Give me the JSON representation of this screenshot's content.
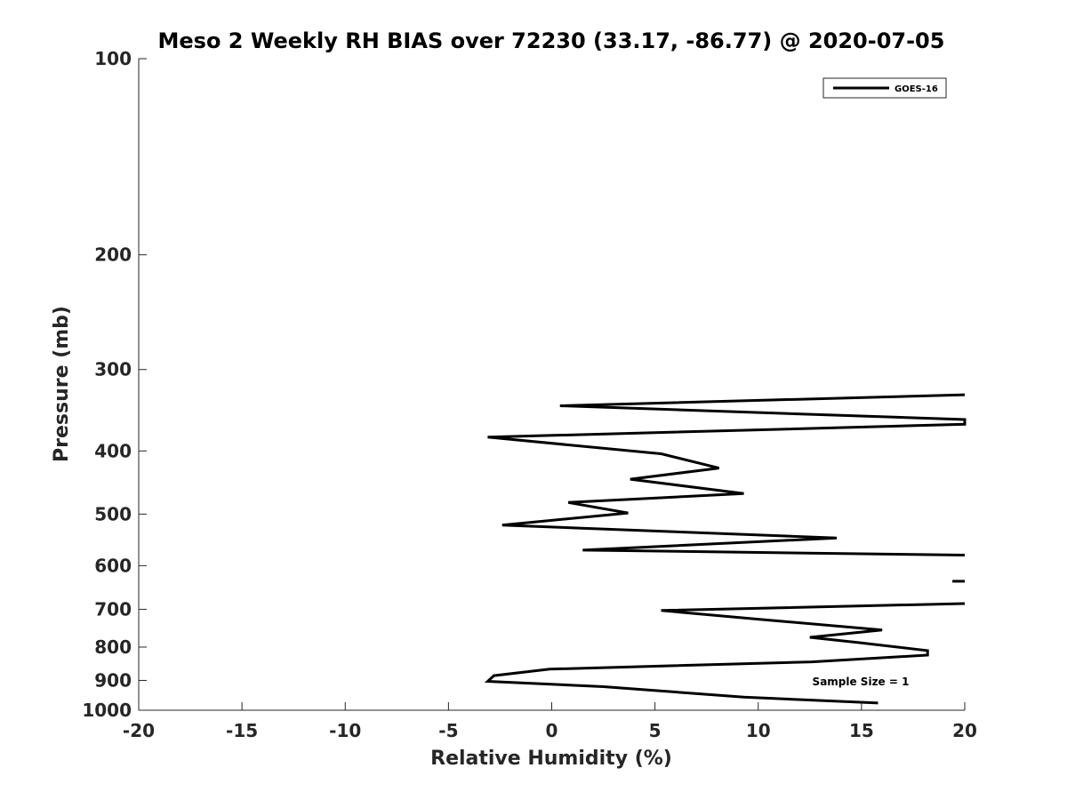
{
  "chart_data": {
    "type": "line",
    "title": "Meso 2 Weekly RH BIAS over 72230 (33.17, -86.77) @ 2020-07-05",
    "xlabel": "Relative Humidity (%)",
    "ylabel": "Pressure (mb)",
    "xlim": [
      -20,
      20
    ],
    "ylim": [
      100,
      1000
    ],
    "y_scale": "log",
    "y_reversed": true,
    "xticks": [
      -20,
      -15,
      -10,
      -5,
      0,
      5,
      10,
      15,
      20
    ],
    "yticks": [
      100,
      200,
      300,
      400,
      500,
      600,
      700,
      800,
      900,
      1000
    ],
    "legend_position": "top-right",
    "grid": false,
    "line_color": "#000000",
    "annotation": "Sample Size = 1",
    "series": [
      {
        "name": "GOES-16",
        "segments": [
          [
            [
              15.8,
              975
            ],
            [
              9.3,
              955
            ],
            [
              2.5,
              920
            ],
            [
              -3.1,
              903
            ],
            [
              -2.8,
              885
            ],
            [
              -0.1,
              865
            ],
            [
              12.6,
              843
            ],
            [
              18.2,
              823
            ],
            [
              18.2,
              810
            ],
            [
              14.8,
              787
            ],
            [
              12.5,
              773
            ],
            [
              16.0,
              753
            ],
            [
              10.0,
              725
            ],
            [
              5.3,
              703
            ],
            [
              20.0,
              686
            ]
          ],
          [
            [
              19.4,
              634
            ],
            [
              20.0,
              634
            ]
          ],
          [
            [
              20.0,
              578
            ],
            [
              1.5,
              568
            ],
            [
              13.8,
              544
            ],
            [
              -2.4,
              520
            ],
            [
              3.7,
              498
            ],
            [
              0.8,
              480
            ],
            [
              9.3,
              465
            ],
            [
              3.8,
              442
            ],
            [
              8.1,
              425
            ],
            [
              5.3,
              404
            ],
            [
              -3.1,
              381
            ],
            [
              20.0,
              364
            ],
            [
              20.0,
              358
            ],
            [
              0.4,
              341
            ],
            [
              20.0,
              328
            ]
          ]
        ]
      }
    ]
  }
}
